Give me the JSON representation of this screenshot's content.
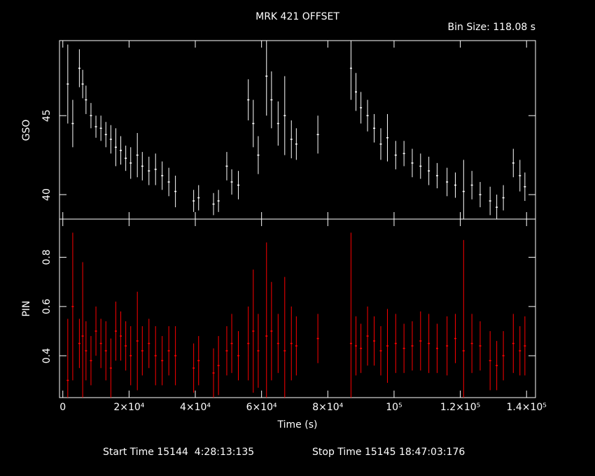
{
  "chart_data": [
    {
      "type": "scatter",
      "title": "MRK 421 OFFSET",
      "subtitle": "Bin Size: 118.08 s",
      "y_label": "GSO",
      "color": "#ffffff",
      "x": [
        1500,
        3000,
        5000,
        6000,
        7000,
        8500,
        10000,
        11500,
        13000,
        14500,
        16000,
        17500,
        19000,
        20500,
        22500,
        24000,
        26000,
        28000,
        30000,
        32000,
        34000,
        39500,
        41000,
        45500,
        47000,
        49500,
        51000,
        53000,
        56000,
        57500,
        59000,
        61500,
        63000,
        65000,
        67000,
        69000,
        70500,
        77000,
        87000,
        88500,
        90000,
        92000,
        94000,
        96000,
        98000,
        100500,
        103000,
        105500,
        108000,
        110500,
        113000,
        116000,
        118500,
        121000,
        123500,
        126000,
        129000,
        131000,
        133000,
        136000,
        138000,
        139500
      ],
      "values": [
        47,
        44.5,
        48,
        47,
        46,
        45,
        44.3,
        44.2,
        43.8,
        43.5,
        43,
        42.8,
        42.3,
        42,
        42.5,
        41.8,
        41.5,
        41.6,
        41.2,
        40.8,
        40.2,
        39.6,
        39.8,
        39.4,
        39.6,
        41.8,
        40.8,
        40.6,
        46,
        44.5,
        42.5,
        47.5,
        46,
        44.5,
        45,
        43.5,
        43.2,
        43.8,
        48,
        46.5,
        45.5,
        45,
        44.2,
        43.2,
        43.6,
        42.5,
        42.6,
        42,
        41.8,
        41.5,
        41.2,
        40.8,
        40.6,
        40.2,
        40.6,
        40,
        39.6,
        39.2,
        39.8,
        42,
        41.2,
        40.5
      ],
      "errors": [
        2.5,
        1.5,
        1.2,
        0.9,
        0.9,
        0.8,
        0.7,
        0.8,
        0.8,
        0.9,
        1.2,
        0.9,
        0.8,
        1,
        1.4,
        0.9,
        0.9,
        1,
        0.9,
        0.9,
        1,
        0.7,
        0.8,
        0.7,
        0.7,
        0.9,
        0.8,
        0.9,
        1.3,
        1.5,
        1.2,
        2.5,
        1.8,
        1.4,
        2.5,
        1.2,
        1,
        1.2,
        2,
        1.2,
        1,
        1,
        0.9,
        1,
        1.5,
        0.9,
        0.8,
        0.9,
        0.8,
        0.9,
        0.8,
        0.9,
        0.8,
        2,
        0.9,
        0.8,
        0.9,
        0.8,
        0.8,
        0.9,
        1,
        0.9
      ],
      "xlim": [
        -1000,
        142700
      ],
      "xticks": [
        0,
        20000,
        40000,
        60000,
        80000,
        100000,
        120000,
        140000
      ],
      "ylim": [
        38.45,
        49.75
      ],
      "yticks": [
        40,
        45
      ]
    },
    {
      "type": "scatter",
      "y_label": "PIN",
      "x_label": "Time (s)",
      "color": "#ff0000",
      "x": [
        1500,
        3000,
        5000,
        6000,
        7000,
        8500,
        10000,
        11500,
        13000,
        14500,
        16000,
        17500,
        19000,
        20500,
        22500,
        24000,
        26000,
        28000,
        30000,
        32000,
        34000,
        39500,
        41000,
        45500,
        47000,
        49500,
        51000,
        53000,
        56000,
        57500,
        59000,
        61500,
        63000,
        65000,
        67000,
        69000,
        70500,
        77000,
        87000,
        88500,
        90000,
        92000,
        94000,
        96000,
        98000,
        100500,
        103000,
        105500,
        108000,
        110500,
        113000,
        116000,
        118500,
        121000,
        123500,
        126000,
        129000,
        131000,
        133000,
        136000,
        138000,
        139500
      ],
      "values": [
        0.3,
        0.6,
        0.45,
        0.48,
        0.42,
        0.38,
        0.5,
        0.45,
        0.42,
        0.35,
        0.5,
        0.48,
        0.44,
        0.4,
        0.46,
        0.42,
        0.45,
        0.4,
        0.38,
        0.42,
        0.4,
        0.35,
        0.38,
        0.33,
        0.36,
        0.42,
        0.45,
        0.4,
        0.45,
        0.5,
        0.42,
        0.48,
        0.5,
        0.45,
        0.42,
        0.45,
        0.44,
        0.47,
        0.45,
        0.44,
        0.43,
        0.48,
        0.46,
        0.42,
        0.44,
        0.45,
        0.43,
        0.44,
        0.46,
        0.45,
        0.43,
        0.44,
        0.47,
        0.42,
        0.45,
        0.44,
        0.38,
        0.36,
        0.4,
        0.45,
        0.42,
        0.44
      ],
      "errors": [
        0.25,
        0.3,
        0.1,
        0.3,
        0.12,
        0.1,
        0.1,
        0.1,
        0.12,
        0.12,
        0.12,
        0.1,
        0.1,
        0.12,
        0.2,
        0.1,
        0.1,
        0.12,
        0.1,
        0.1,
        0.12,
        0.1,
        0.1,
        0.1,
        0.12,
        0.1,
        0.12,
        0.1,
        0.15,
        0.25,
        0.15,
        0.38,
        0.2,
        0.12,
        0.3,
        0.15,
        0.12,
        0.1,
        0.45,
        0.12,
        0.1,
        0.12,
        0.1,
        0.1,
        0.15,
        0.12,
        0.1,
        0.1,
        0.12,
        0.12,
        0.1,
        0.12,
        0.1,
        0.45,
        0.12,
        0.1,
        0.12,
        0.1,
        0.1,
        0.12,
        0.1,
        0.12
      ],
      "xlim": [
        -1000,
        142700
      ],
      "xticks": [
        {
          "value": 0,
          "label": "0"
        },
        {
          "value": 20000,
          "label": "2×10⁴"
        },
        {
          "value": 40000,
          "label": "4×10⁴"
        },
        {
          "value": 60000,
          "label": "6×10⁴"
        },
        {
          "value": 80000,
          "label": "8×10⁴"
        },
        {
          "value": 100000,
          "label": "10⁵"
        },
        {
          "value": 120000,
          "label": "1.2×10⁵"
        },
        {
          "value": 140000,
          "label": "1.4×10⁵"
        }
      ],
      "ylim": [
        0.23,
        0.955
      ],
      "yticks": [
        0.4,
        0.6,
        0.8
      ]
    }
  ],
  "footer": {
    "start": "Start Time 15144  4:28:13:135",
    "stop": "Stop Time 15145 18:47:03:176"
  }
}
